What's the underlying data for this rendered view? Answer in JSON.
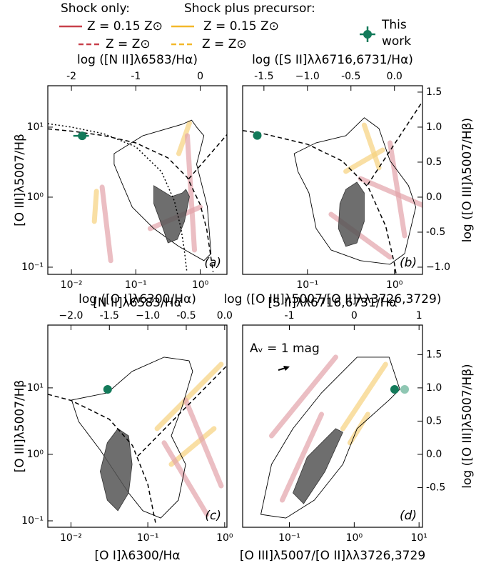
{
  "legend": {
    "groups": [
      {
        "title": "Shock only:",
        "entries": [
          {
            "label": "Z = 0.15 Z⊙",
            "color": "#c8414b",
            "dash": "solid"
          },
          {
            "label": "Z = Z⊙",
            "color": "#c8414b",
            "dash": "dashed"
          }
        ]
      },
      {
        "title": "Shock plus precursor:",
        "entries": [
          {
            "label": "Z = 0.15 Z⊙",
            "color": "#f3b82b",
            "dash": "solid"
          },
          {
            "label": "Z = Z⊙",
            "color": "#f3b82b",
            "dash": "dashed"
          }
        ]
      }
    ],
    "marker": {
      "label": "This work",
      "color": "#137a5a"
    }
  },
  "chart_data": [
    {
      "type": "scatter",
      "panel_label": "(a)",
      "xlabel": "[N II]λ6583/Hα",
      "x2label": "log ([N II]λ6583/Hα)",
      "ylabel": "[O III]λ5007/Hβ",
      "log_x": true,
      "log_y": true,
      "xlim": [
        0.0043,
        2.6
      ],
      "ylim": [
        0.079,
        39
      ],
      "xticks": [
        {
          "value": 0.01,
          "label": "10⁻²"
        },
        {
          "value": 0.1,
          "label": "10⁻¹"
        },
        {
          "value": 1,
          "label": "10⁰"
        }
      ],
      "x2ticks": [
        -2,
        -1,
        0
      ],
      "yticks": [
        {
          "value": 0.1,
          "label": "10⁻¹"
        },
        {
          "value": 1,
          "label": "10⁰"
        },
        {
          "value": 10,
          "label": "10¹"
        }
      ],
      "series": [
        {
          "style": "model",
          "color": "#f6d27e",
          "x": [
            0.0245,
            0.0227
          ],
          "values": [
            1.21,
            0.45
          ]
        },
        {
          "style": "model",
          "color": "#f6d27e",
          "x": [
            0.464,
            0.681
          ],
          "values": [
            4.19,
            11.5
          ]
        },
        {
          "style": "model",
          "color": "#e3a3aa",
          "x": [
            0.03,
            0.0408
          ],
          "values": [
            1.39,
            0.124
          ]
        },
        {
          "style": "model",
          "color": "#e3a3aa",
          "x": [
            0.631,
            0.815
          ],
          "values": [
            7.55,
            0.176
          ]
        },
        {
          "style": "model",
          "color": "#e3a3aa",
          "x": [
            0.167,
            1.0
          ],
          "values": [
            0.356,
            0.72
          ]
        },
        {
          "style": "contour-outer",
          "color": "#000000",
          "x": [
            0.046,
            0.129,
            0.527,
            0.736,
            0.88,
            1.14,
            0.88,
            1.29,
            1.47,
            1.14,
            0.464,
            0.19,
            0.088,
            0.06,
            0.046
          ],
          "values": [
            4.19,
            7.55,
            11,
            12.6,
            10,
            7.55,
            2.95,
            0.736,
            0.156,
            0.124,
            0.198,
            0.356,
            0.72,
            1.64,
            2.95
          ]
        },
        {
          "style": "contour-inner",
          "color": "#555555",
          "x": [
            0.19,
            0.359,
            0.527,
            0.6,
            0.681,
            0.57,
            0.441,
            0.316,
            0.264,
            0.19
          ],
          "values": [
            1.46,
            1.02,
            1.15,
            1.29,
            1.02,
            0.45,
            0.25,
            0.222,
            0.356,
            0.81
          ]
        },
        {
          "style": "dashed",
          "color": "#000000",
          "x": [
            0.0043,
            0.01,
            0.0316,
            0.1,
            0.316,
            0.631,
            1,
            1.259,
            1.585
          ],
          "values": [
            9.44,
            8.77,
            7.59,
            5.96,
            3.64,
            1.905,
            0.78,
            0.351,
            0.0853
          ]
        },
        {
          "style": "dotted",
          "color": "#000000",
          "x": [
            0.0043,
            0.01,
            0.0316,
            0.1,
            0.251,
            0.398,
            0.501,
            0.562,
            0.617
          ],
          "values": [
            11.2,
            10.0,
            8.06,
            5.24,
            2.3,
            0.88,
            0.361,
            0.185,
            0.09
          ]
        },
        {
          "style": "dashed",
          "color": "#000000",
          "x": [
            0.661,
            2.6
          ],
          "values": [
            1.82,
            7.8
          ]
        },
        {
          "style": "marker",
          "color": "#137a5a",
          "x": [
            0.0147
          ],
          "values": [
            7.5
          ],
          "xerr": [
            0.004
          ]
        }
      ]
    },
    {
      "type": "scatter",
      "panel_label": "(b)",
      "xlabel": "[S II]λλ6716,6731/Hα",
      "x2label": "log ([S II]λλ6716,6731/Hα)",
      "y2label": "log ([O III]λ5007/Hβ)",
      "log_x": true,
      "log_y": true,
      "xlim": [
        0.018,
        2.1
      ],
      "ylim": [
        0.079,
        39
      ],
      "xticks": [
        {
          "value": 0.1,
          "label": "10⁻¹"
        },
        {
          "value": 1,
          "label": "10⁰"
        }
      ],
      "x2ticks": [
        -1.5,
        {
          "value": -1,
          "label": "−1.0"
        },
        -0.5,
        {
          "value": 0,
          "label": "0.0"
        }
      ],
      "y2ticks": [
        {
          "value": -1,
          "label": "−1.0"
        },
        -0.5,
        {
          "value": 0,
          "label": "0.0"
        },
        0.5,
        {
          "value": 1,
          "label": "1.0"
        },
        1.5
      ],
      "series": [
        {
          "style": "model",
          "color": "#f6d27e",
          "x": [
            0.45,
            0.664
          ],
          "values": [
            10.7,
            2.62
          ]
        },
        {
          "style": "model",
          "color": "#f6d27e",
          "x": [
            0.276,
            0.731
          ],
          "values": [
            2.33,
            4.71
          ]
        },
        {
          "style": "model",
          "color": "#e3a3aa",
          "x": [
            0.187,
            0.889
          ],
          "values": [
            0.569,
            0.139
          ]
        },
        {
          "style": "model",
          "color": "#e3a3aa",
          "x": [
            0.407,
            2.36
          ],
          "values": [
            1.84,
            0.72
          ]
        },
        {
          "style": "model",
          "color": "#e3a3aa",
          "x": [
            0.889,
            1.31
          ],
          "values": [
            5.97,
            0.281
          ]
        },
        {
          "style": "contour-outer",
          "color": "#000000",
          "x": [
            0.0704,
            0.126,
            0.276,
            0.45,
            0.664,
            0.889,
            1.45,
            1.76,
            1.31,
            0.889,
            0.407,
            0.187,
            0.126,
            0.104,
            0.0776
          ],
          "values": [
            4.19,
            5.97,
            7.55,
            13.6,
            9.54,
            3.31,
            1.46,
            0.72,
            0.156,
            0.11,
            0.124,
            0.176,
            0.356,
            1.15,
            2.33
          ]
        },
        {
          "style": "contour-inner",
          "color": "#555555",
          "x": [
            0.276,
            0.37,
            0.45,
            0.45,
            0.37,
            0.276,
            0.227,
            0.236
          ],
          "values": [
            1.29,
            1.64,
            1.15,
            0.45,
            0.222,
            0.198,
            0.356,
            0.81
          ]
        },
        {
          "style": "dashed",
          "color": "#000000",
          "x": [
            0.018,
            0.0316,
            0.1,
            0.251,
            0.501,
            0.794,
            1,
            1.047
          ],
          "values": [
            8.94,
            8.02,
            5.69,
            3.29,
            1.38,
            0.385,
            0.112,
            0.079
          ]
        },
        {
          "style": "dashed",
          "color": "#000000",
          "x": [
            0.49,
            2.09
          ],
          "values": [
            1.49,
            23
          ]
        },
        {
          "style": "marker",
          "color": "#137a5a",
          "x": [
            0.0265
          ],
          "values": [
            7.6
          ]
        }
      ]
    },
    {
      "type": "scatter",
      "panel_label": "(c)",
      "xlabel": "[O I]λ6300/Hα",
      "x2label": "log ([O I]λ6300/Hα)",
      "ylabel": "[O III]λ5007/Hβ",
      "log_x": true,
      "log_y": true,
      "xlim": [
        0.005,
        1.07
      ],
      "ylim": [
        0.08,
        88
      ],
      "xticks": [
        {
          "value": 0.01,
          "label": "10⁻²"
        },
        {
          "value": 0.1,
          "label": "10⁻¹"
        },
        {
          "value": 1,
          "label": "10⁰"
        }
      ],
      "x2ticks": [
        {
          "value": -2,
          "label": "−2.0"
        },
        -1.5,
        {
          "value": -1,
          "label": "−1.0"
        },
        -0.5,
        {
          "value": 0,
          "label": "0.0"
        }
      ],
      "yticks": [
        {
          "value": 0.1,
          "label": "10⁻¹"
        },
        {
          "value": 1,
          "label": "10⁰"
        },
        {
          "value": 10,
          "label": "10¹"
        }
      ],
      "series": [
        {
          "style": "model",
          "color": "#f6d27e",
          "x": [
            0.132,
            0.899
          ],
          "values": [
            2.44,
            22.6
          ]
        },
        {
          "style": "model",
          "color": "#f6d27e",
          "x": [
            0.202,
            0.726
          ],
          "values": [
            0.707,
            2.44
          ]
        },
        {
          "style": "model",
          "color": "#e3a3aa",
          "x": [
            0.163,
            0.587
          ],
          "values": [
            1.49,
            0.125
          ]
        },
        {
          "style": "model",
          "color": "#e3a3aa",
          "x": [
            0.31,
            0.899
          ],
          "values": [
            6.56,
            0.336
          ]
        },
        {
          "style": "contour-outer",
          "color": "#000000",
          "x": [
            0.0102,
            0.0297,
            0.0625,
            0.163,
            0.344,
            0.383,
            0.278,
            0.202,
            0.31,
            0.25,
            0.147,
            0.0861,
            0.0562,
            0.024,
            0.0126
          ],
          "values": [
            6.56,
            8.41,
            17.7,
            29.0,
            25.6,
            17.7,
            5.13,
            1.9,
            0.707,
            0.205,
            0.11,
            0.142,
            0.263,
            1.16,
            3.12
          ]
        },
        {
          "style": "contour-inner",
          "color": "#555555",
          "x": [
            0.0297,
            0.0408,
            0.0562,
            0.0625,
            0.0562,
            0.0408,
            0.0297,
            0.024
          ],
          "values": [
            1.49,
            2.44,
            1.9,
            0.707,
            0.263,
            0.142,
            0.205,
            0.552
          ]
        },
        {
          "style": "dashed",
          "color": "#000000",
          "x": [
            0.005,
            0.01,
            0.0316,
            0.0631,
            0.1,
            0.126
          ],
          "values": [
            8.0,
            6.49,
            3.37,
            1.36,
            0.355,
            0.094
          ]
        },
        {
          "style": "dashed",
          "color": "#000000",
          "x": [
            0.0741,
            1.07
          ],
          "values": [
            0.94,
            21.6
          ]
        },
        {
          "style": "marker",
          "color": "#137a5a",
          "x": [
            0.03
          ],
          "values": [
            9.5
          ]
        }
      ]
    },
    {
      "type": "scatter",
      "panel_label": "(d)",
      "xlabel": "[O III]λ5007/[O II]λλ3726,3729",
      "x2label": "log ([O III]λ5007/[O II]λλ3726,3729)",
      "y2label": "log ([O III]λ5007/Hβ)",
      "log_x": true,
      "log_y": true,
      "xlim": [
        0.019,
        11.3
      ],
      "ylim": [
        0.08,
        88
      ],
      "xticks": [
        {
          "value": 0.1,
          "label": "10⁻¹"
        },
        {
          "value": 1,
          "label": "10⁰"
        },
        {
          "value": 10,
          "label": "10¹"
        }
      ],
      "x2ticks": [
        -1,
        0,
        1
      ],
      "y2ticks": [
        -0.5,
        {
          "value": 0,
          "label": "0.0"
        },
        0.5,
        {
          "value": 1,
          "label": "1.0"
        },
        1.5
      ],
      "annotations": [
        {
          "text": "Aᵥ = 1 mag"
        }
      ],
      "series": [
        {
          "style": "model",
          "color": "#e3a3aa",
          "x": [
            0.0531,
            0.518
          ],
          "values": [
            1.9,
            29.0
          ]
        },
        {
          "style": "model",
          "color": "#e3a3aa",
          "x": [
            0.0776,
            0.313
          ],
          "values": [
            0.205,
            4.0
          ]
        },
        {
          "style": "model",
          "color": "#f6d27e",
          "x": [
            0.667,
            3.05
          ],
          "values": [
            2.44,
            22.6
          ]
        },
        {
          "style": "model",
          "color": "#f6d27e",
          "x": [
            0.859,
            1.62
          ],
          "values": [
            1.49,
            4.0
          ]
        },
        {
          "style": "contour-outer",
          "color": "#000000",
          "x": [
            0.0363,
            0.0531,
            0.1135,
            0.313,
            1.107,
            3.45,
            5.05,
            3.45,
            1.107,
            0.667,
            0.243,
            0.0881
          ],
          "values": [
            0.125,
            0.707,
            2.44,
            8.41,
            29.0,
            29.0,
            9.51,
            6.56,
            2.44,
            0.707,
            0.205,
            0.11
          ]
        },
        {
          "style": "contour-inner",
          "color": "#555555",
          "x": [
            0.1135,
            0.188,
            0.518,
            0.667,
            0.354,
            0.166
          ],
          "values": [
            0.263,
            0.906,
            2.44,
            2.15,
            0.552,
            0.181
          ]
        },
        {
          "style": "marker",
          "color": "#8fc7b3",
          "x": [
            6.0
          ],
          "values": [
            9.5
          ]
        },
        {
          "style": "marker",
          "color": "#137a5a",
          "x": [
            4.2
          ],
          "values": [
            9.5
          ]
        }
      ]
    }
  ]
}
